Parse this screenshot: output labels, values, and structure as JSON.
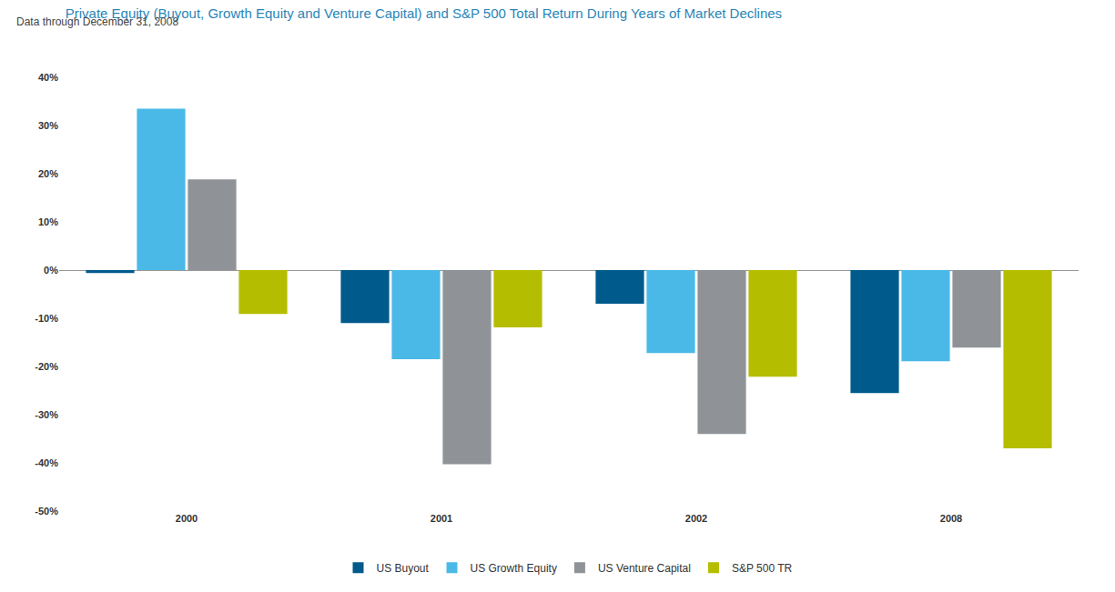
{
  "chart_data": {
    "type": "bar",
    "title": "Private Equity (Buyout, Growth Equity and Venture Capital) and S&P 500 Total Return During Years of Market Declines",
    "subtitle": "Data through December 31, 2008",
    "categories": [
      "2000",
      "2001",
      "2002",
      "2008"
    ],
    "series": [
      {
        "name": "US Buyout",
        "color": "#005b8c",
        "values": [
          -0.6,
          -11.0,
          -7.0,
          -25.5
        ]
      },
      {
        "name": "US Growth Equity",
        "color": "#4bb9e8",
        "values": [
          33.5,
          -18.5,
          -17.2,
          -18.9
        ]
      },
      {
        "name": "US Venture Capital",
        "color": "#8f9398",
        "values": [
          18.8,
          -40.3,
          -34.0,
          -16.1
        ]
      },
      {
        "name": "S&P 500 TR",
        "color": "#b5bd00",
        "values": [
          -9.1,
          -11.9,
          -22.1,
          -37.0
        ]
      }
    ],
    "ylim": [
      -50,
      40
    ],
    "yticks": [
      {
        "value": -50,
        "label": "-50%"
      },
      {
        "value": -40,
        "label": "-40%"
      },
      {
        "value": -30,
        "label": "-30%"
      },
      {
        "value": -20,
        "label": "-20%"
      },
      {
        "value": -10,
        "label": "-10%"
      },
      {
        "value": 0,
        "label": "0%"
      },
      {
        "value": 10,
        "label": "10%"
      },
      {
        "value": 20,
        "label": "20%"
      },
      {
        "value": 30,
        "label": "30%"
      },
      {
        "value": 40,
        "label": "40%"
      }
    ],
    "grid": false,
    "legend": "bottom"
  }
}
